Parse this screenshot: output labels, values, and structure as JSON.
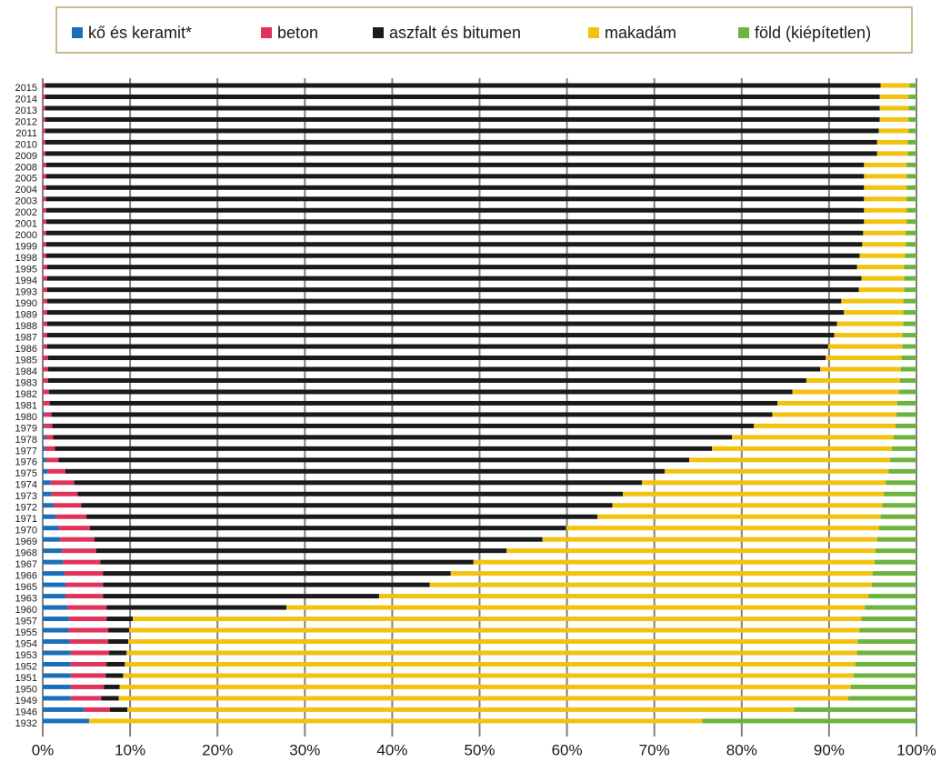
{
  "chart_data": {
    "type": "stacked-bar-horizontal",
    "categories": [
      "2015",
      "2014",
      "2013",
      "2012",
      "2011",
      "2010",
      "2009",
      "2008",
      "2005",
      "2004",
      "2003",
      "2002",
      "2001",
      "2000",
      "1999",
      "1998",
      "1995",
      "1994",
      "1993",
      "1990",
      "1989",
      "1988",
      "1987",
      "1986",
      "1985",
      "1984",
      "1983",
      "1982",
      "1981",
      "1980",
      "1979",
      "1978",
      "1977",
      "1976",
      "1975",
      "1974",
      "1973",
      "1972",
      "1971",
      "1970",
      "1969",
      "1968",
      "1967",
      "1966",
      "1965",
      "1963",
      "1960",
      "1957",
      "1955",
      "1954",
      "1953",
      "1952",
      "1951",
      "1950",
      "1949",
      "1946",
      "1932"
    ],
    "series": [
      {
        "name": "kő és keramit*",
        "color": "#1a6fb8",
        "values": [
          0,
          0,
          0,
          0,
          0,
          0,
          0,
          0,
          0,
          0,
          0,
          0,
          0,
          0,
          0,
          0,
          0,
          0,
          0,
          0,
          0,
          0,
          0,
          0,
          0,
          0,
          0,
          0,
          0,
          0.2,
          0.2,
          0.3,
          0.3,
          0.4,
          0.6,
          0.9,
          1.0,
          1.2,
          1.5,
          1.8,
          2.0,
          2.2,
          2.3,
          2.5,
          2.6,
          2.6,
          2.8,
          3.0,
          3.0,
          3.1,
          3.2,
          3.2,
          3.2,
          3.2,
          3.2,
          4.7,
          5.3
        ]
      },
      {
        "name": "beton",
        "color": "#e0325a",
        "values": [
          0.3,
          0.3,
          0.3,
          0.3,
          0.3,
          0.3,
          0.3,
          0.4,
          0.4,
          0.4,
          0.4,
          0.4,
          0.4,
          0.4,
          0.4,
          0.4,
          0.5,
          0.5,
          0.5,
          0.5,
          0.5,
          0.5,
          0.5,
          0.5,
          0.6,
          0.6,
          0.6,
          0.7,
          0.8,
          0.8,
          0.9,
          0.9,
          1.1,
          1.4,
          2.0,
          2.7,
          3.0,
          3.2,
          3.5,
          3.6,
          3.9,
          3.9,
          4.3,
          4.4,
          4.3,
          4.3,
          4.5,
          4.3,
          4.5,
          4.4,
          4.4,
          4.1,
          4.0,
          3.8,
          3.5,
          3.0,
          0
        ]
      },
      {
        "name": "aszfalt és bitumen",
        "color": "#1a1a1a",
        "values": [
          95.6,
          95.5,
          95.5,
          95.5,
          95.4,
          95.2,
          95.2,
          93.6,
          93.6,
          93.6,
          93.6,
          93.6,
          93.6,
          93.5,
          93.4,
          93.1,
          92.7,
          93.2,
          92.9,
          90.9,
          91.2,
          90.4,
          90.1,
          89.4,
          89.0,
          88.4,
          86.8,
          85.1,
          83.3,
          82.5,
          80.3,
          77.7,
          75.2,
          72.2,
          68.6,
          65.0,
          62.4,
          60.8,
          58.5,
          54.5,
          51.3,
          47.0,
          42.7,
          39.8,
          37.4,
          31.6,
          20.6,
          3.0,
          2.4,
          2.3,
          2.0,
          2.1,
          2.0,
          1.8,
          2.0,
          2.0,
          0
        ]
      },
      {
        "name": "makadám",
        "color": "#f2c20f",
        "values": [
          3.3,
          3.3,
          3.3,
          3.3,
          3.4,
          3.5,
          3.5,
          4.9,
          4.9,
          4.9,
          4.9,
          4.9,
          4.9,
          4.9,
          5.0,
          5.2,
          5.4,
          4.9,
          5.2,
          7.1,
          6.8,
          7.6,
          7.8,
          8.5,
          8.7,
          9.2,
          10.7,
          12.2,
          13.7,
          14.2,
          16.2,
          18.5,
          20.6,
          23.0,
          25.6,
          27.9,
          29.9,
          30.9,
          32.4,
          35.8,
          38.3,
          42.2,
          45.9,
          48.3,
          50.6,
          56.0,
          66.2,
          83.4,
          83.6,
          83.5,
          83.6,
          83.6,
          83.6,
          83.7,
          83.5,
          76.3,
          70.2
        ]
      },
      {
        "name": "föld (kiépítetlen)",
        "color": "#6db33f",
        "values": [
          0.8,
          0.9,
          0.9,
          0.9,
          0.9,
          1.0,
          1.0,
          1.1,
          1.1,
          1.1,
          1.1,
          1.1,
          1.1,
          1.2,
          1.2,
          1.3,
          1.4,
          1.4,
          1.4,
          1.5,
          1.5,
          1.5,
          1.6,
          1.6,
          1.7,
          1.8,
          1.9,
          2.0,
          2.2,
          2.3,
          2.4,
          2.6,
          2.8,
          3.0,
          3.2,
          3.5,
          3.7,
          3.9,
          4.1,
          4.3,
          4.5,
          4.7,
          4.8,
          5.0,
          5.1,
          5.5,
          5.9,
          6.3,
          6.5,
          6.7,
          6.8,
          7.0,
          7.2,
          7.5,
          7.8,
          14.0,
          24.5
        ]
      }
    ],
    "xlim": [
      0,
      100
    ],
    "xticks": [
      {
        "value": 0,
        "label": "0%"
      },
      {
        "value": 10,
        "label": "10%"
      },
      {
        "value": 20,
        "label": "20%"
      },
      {
        "value": 30,
        "label": "30%"
      },
      {
        "value": 40,
        "label": "40%"
      },
      {
        "value": 50,
        "label": "50%"
      },
      {
        "value": 60,
        "label": "60%"
      },
      {
        "value": 70,
        "label": "70%"
      },
      {
        "value": 80,
        "label": "80%"
      },
      {
        "value": 90,
        "label": "90%"
      },
      {
        "value": 100,
        "label": "100%"
      }
    ],
    "grid": true,
    "legend": "top"
  }
}
